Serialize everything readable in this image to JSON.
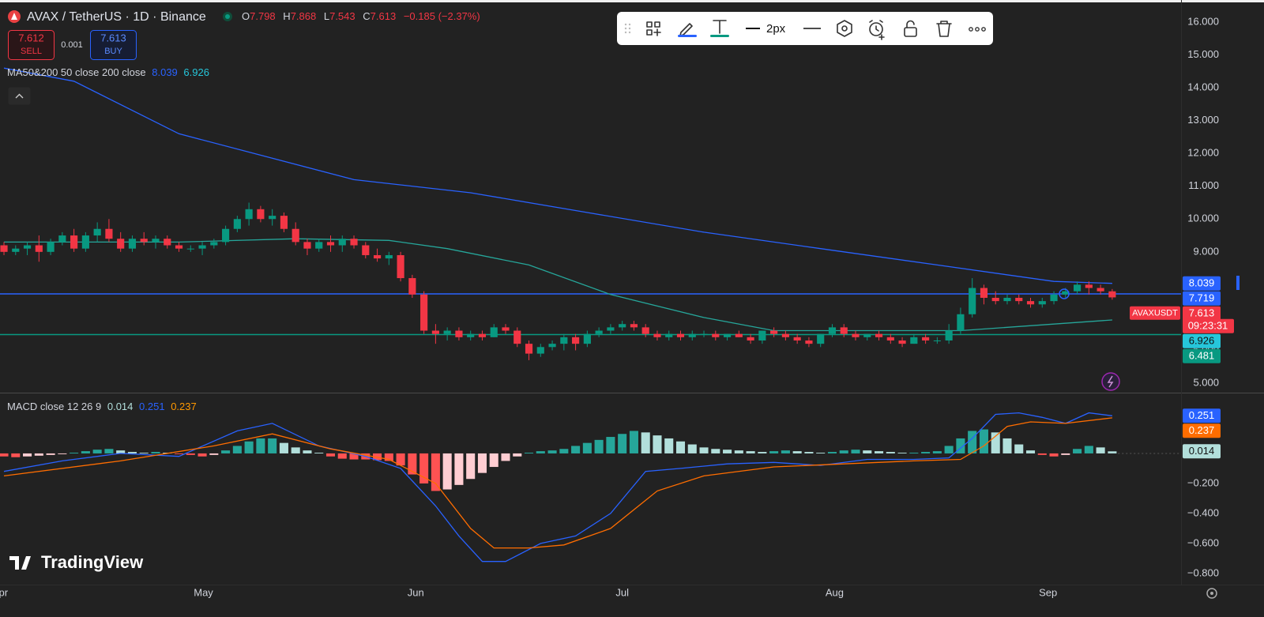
{
  "header": {
    "symbol": "AVAX / TetherUS · 1D · Binance",
    "ohlc": [
      {
        "label": "O",
        "value": "7.798"
      },
      {
        "label": "H",
        "value": "7.868"
      },
      {
        "label": "L",
        "value": "7.543"
      },
      {
        "label": "C",
        "value": "7.613"
      }
    ],
    "change": "−0.185 (−2.37%)",
    "sell": {
      "price": "7.612",
      "label": "SELL"
    },
    "spread": "0.001",
    "buy": {
      "price": "7.613",
      "label": "BUY"
    }
  },
  "toolbar": {
    "width_label": "2px"
  },
  "indicator_legends": [
    {
      "title": "MA50&200 50 close 200 close",
      "values": [
        "8.039",
        "6.926"
      ]
    },
    {
      "title": "MACD close 12 26 9",
      "values": [
        "0.014",
        "0.251",
        "0.237"
      ]
    }
  ],
  "logo": "TradingView",
  "chart_data": [
    {
      "type": "candlestick",
      "up_color": "#089981",
      "down_color": "#f23645",
      "xlim": [
        -0.34,
        100.9
      ],
      "xticks": [
        {
          "value": -0.34,
          "label": "Apr"
        },
        {
          "value": 17.1,
          "label": "May"
        },
        {
          "value": 35.3,
          "label": "Jun"
        },
        {
          "value": 53,
          "label": "Jul"
        },
        {
          "value": 71.2,
          "label": "Aug"
        },
        {
          "value": 89.5,
          "label": "Sep"
        }
      ],
      "ylim": [
        4.711,
        16.674
      ],
      "yticks": [
        {
          "value": 5,
          "label": "5.000"
        },
        {
          "value": 6,
          "label": "6.000"
        },
        {
          "value": 9,
          "label": "9.000"
        },
        {
          "value": 10,
          "label": "10.000"
        },
        {
          "value": 11,
          "label": "11.000"
        },
        {
          "value": 12,
          "label": "12.000"
        },
        {
          "value": 13,
          "label": "13.000"
        },
        {
          "value": 14,
          "label": "14.000"
        },
        {
          "value": 15,
          "label": "15.000"
        },
        {
          "value": 16,
          "label": "16.000"
        }
      ],
      "ohlc": [
        [
          9.2,
          9.3,
          8.9,
          9.0
        ],
        [
          9.0,
          9.2,
          8.9,
          9.1
        ],
        [
          9.1,
          9.3,
          8.9,
          9.2
        ],
        [
          9.2,
          9.5,
          8.7,
          9.0
        ],
        [
          9.0,
          9.4,
          8.9,
          9.3
        ],
        [
          9.3,
          9.6,
          9.2,
          9.5
        ],
        [
          9.5,
          9.7,
          9.0,
          9.1
        ],
        [
          9.1,
          9.6,
          9.0,
          9.5
        ],
        [
          9.5,
          9.9,
          9.3,
          9.7
        ],
        [
          9.7,
          10.0,
          9.3,
          9.4
        ],
        [
          9.4,
          9.6,
          9.0,
          9.1
        ],
        [
          9.1,
          9.5,
          9.0,
          9.4
        ],
        [
          9.4,
          9.6,
          9.2,
          9.3
        ],
        [
          9.3,
          9.5,
          9.1,
          9.4
        ],
        [
          9.4,
          9.5,
          9.1,
          9.2
        ],
        [
          9.2,
          9.3,
          9.0,
          9.1
        ],
        [
          9.1,
          9.2,
          9.0,
          9.1
        ],
        [
          9.1,
          9.3,
          8.9,
          9.2
        ],
        [
          9.2,
          9.4,
          9.1,
          9.3
        ],
        [
          9.3,
          9.8,
          9.2,
          9.7
        ],
        [
          9.7,
          10.1,
          9.6,
          10.0
        ],
        [
          10.0,
          10.5,
          9.8,
          10.3
        ],
        [
          10.3,
          10.4,
          9.9,
          10.0
        ],
        [
          10.0,
          10.3,
          9.8,
          10.1
        ],
        [
          10.1,
          10.2,
          9.6,
          9.7
        ],
        [
          9.7,
          9.9,
          9.2,
          9.3
        ],
        [
          9.3,
          9.4,
          8.9,
          9.1
        ],
        [
          9.1,
          9.4,
          9.0,
          9.3
        ],
        [
          9.3,
          9.5,
          9.0,
          9.2
        ],
        [
          9.2,
          9.5,
          9.0,
          9.4
        ],
        [
          9.4,
          9.5,
          9.1,
          9.2
        ],
        [
          9.2,
          9.3,
          8.8,
          8.9
        ],
        [
          8.9,
          9.1,
          8.7,
          8.8
        ],
        [
          8.8,
          9.0,
          8.6,
          8.9
        ],
        [
          8.9,
          9.0,
          8.1,
          8.2
        ],
        [
          8.2,
          8.3,
          7.6,
          7.7
        ],
        [
          7.7,
          7.8,
          6.5,
          6.6
        ],
        [
          6.6,
          6.8,
          6.2,
          6.5
        ],
        [
          6.5,
          6.7,
          6.3,
          6.6
        ],
        [
          6.6,
          6.7,
          6.3,
          6.4
        ],
        [
          6.4,
          6.6,
          6.3,
          6.5
        ],
        [
          6.5,
          6.6,
          6.3,
          6.4
        ],
        [
          6.4,
          6.8,
          6.4,
          6.7
        ],
        [
          6.7,
          6.8,
          6.5,
          6.6
        ],
        [
          6.6,
          6.7,
          6.1,
          6.2
        ],
        [
          6.2,
          6.3,
          5.7,
          5.9
        ],
        [
          5.9,
          6.2,
          5.8,
          6.1
        ],
        [
          6.1,
          6.3,
          6.0,
          6.2
        ],
        [
          6.2,
          6.5,
          6.0,
          6.4
        ],
        [
          6.4,
          6.5,
          6.0,
          6.2
        ],
        [
          6.2,
          6.6,
          6.1,
          6.5
        ],
        [
          6.5,
          6.7,
          6.4,
          6.6
        ],
        [
          6.6,
          6.8,
          6.5,
          6.7
        ],
        [
          6.7,
          6.9,
          6.6,
          6.8
        ],
        [
          6.8,
          6.9,
          6.6,
          6.7
        ],
        [
          6.7,
          6.8,
          6.4,
          6.5
        ],
        [
          6.5,
          6.6,
          6.3,
          6.4
        ],
        [
          6.4,
          6.6,
          6.3,
          6.5
        ],
        [
          6.5,
          6.6,
          6.3,
          6.4
        ],
        [
          6.4,
          6.6,
          6.3,
          6.5
        ],
        [
          6.5,
          6.6,
          6.4,
          6.5
        ],
        [
          6.5,
          6.6,
          6.3,
          6.4
        ],
        [
          6.4,
          6.5,
          6.3,
          6.5
        ],
        [
          6.5,
          6.6,
          6.4,
          6.4
        ],
        [
          6.4,
          6.5,
          6.2,
          6.3
        ],
        [
          6.3,
          6.6,
          6.2,
          6.6
        ],
        [
          6.6,
          6.7,
          6.4,
          6.5
        ],
        [
          6.5,
          6.6,
          6.3,
          6.4
        ],
        [
          6.4,
          6.5,
          6.2,
          6.3
        ],
        [
          6.3,
          6.4,
          6.1,
          6.2
        ],
        [
          6.2,
          6.5,
          6.1,
          6.5
        ],
        [
          6.5,
          6.8,
          6.4,
          6.7
        ],
        [
          6.7,
          6.8,
          6.4,
          6.5
        ],
        [
          6.5,
          6.6,
          6.3,
          6.4
        ],
        [
          6.4,
          6.5,
          6.3,
          6.5
        ],
        [
          6.5,
          6.6,
          6.3,
          6.4
        ],
        [
          6.4,
          6.5,
          6.2,
          6.3
        ],
        [
          6.3,
          6.4,
          6.1,
          6.2
        ],
        [
          6.2,
          6.5,
          6.2,
          6.4
        ],
        [
          6.4,
          6.5,
          6.2,
          6.3
        ],
        [
          6.3,
          6.4,
          6.2,
          6.3
        ],
        [
          6.3,
          6.8,
          6.2,
          6.6
        ],
        [
          6.6,
          7.3,
          6.5,
          7.1
        ],
        [
          7.1,
          8.2,
          7.0,
          7.9
        ],
        [
          7.9,
          8.0,
          7.4,
          7.6
        ],
        [
          7.6,
          7.8,
          7.4,
          7.5
        ],
        [
          7.5,
          7.7,
          7.4,
          7.6
        ],
        [
          7.6,
          7.7,
          7.4,
          7.5
        ],
        [
          7.5,
          7.6,
          7.3,
          7.4
        ],
        [
          7.4,
          7.6,
          7.3,
          7.5
        ],
        [
          7.5,
          7.8,
          7.4,
          7.7
        ],
        [
          7.7,
          7.9,
          7.6,
          7.8
        ],
        [
          7.8,
          8.1,
          7.7,
          8.0
        ],
        [
          8.0,
          8.1,
          7.7,
          7.9
        ],
        [
          7.9,
          8.0,
          7.7,
          7.798
        ],
        [
          7.798,
          7.868,
          7.543,
          7.613
        ]
      ],
      "series": [
        {
          "color": "#26a69a",
          "x": [
            0,
            15,
            25,
            33,
            38,
            45,
            52,
            60,
            66,
            75,
            82,
            90,
            95
          ],
          "values": [
            9.3,
            9.3,
            9.4,
            9.35,
            9.1,
            8.6,
            7.7,
            7.0,
            6.6,
            6.6,
            6.6,
            6.8,
            6.926
          ]
        },
        {
          "color": "#2962ff",
          "x": [
            0,
            6,
            15,
            30,
            40,
            50,
            60,
            70,
            80,
            90,
            95
          ],
          "values": [
            14.6,
            14.2,
            12.6,
            11.2,
            10.8,
            10.2,
            9.6,
            9.1,
            8.6,
            8.1,
            8.039
          ]
        }
      ],
      "hlines": [
        {
          "value": 7.719,
          "color": "#2962ff"
        },
        {
          "value": 6.481,
          "color": "#089981"
        }
      ],
      "price_labels": [
        {
          "value": 8.039,
          "color": "#2962ff"
        },
        {
          "value": 7.719,
          "color": "#2962ff"
        },
        {
          "value": 7.613,
          "color": "#f23645",
          "countdown": "09:23:31",
          "tag": "AVAXUSDT"
        },
        {
          "value": 6.926,
          "color": "#26c6da"
        },
        {
          "value": 6.481,
          "color": "#089981"
        }
      ]
    },
    {
      "type": "macd",
      "xlim": [
        -0.34,
        100.9
      ],
      "ylim": [
        -0.874,
        0.405
      ],
      "yticks": [
        {
          "value": -0.2,
          "label": "−0.200"
        },
        {
          "value": -0.4,
          "label": "−0.400"
        },
        {
          "value": -0.6,
          "label": "−0.600"
        },
        {
          "value": -0.8,
          "label": "−0.800"
        }
      ],
      "hist_colors": {
        "up_strong": "#26a69a",
        "up_weak": "#b2dfdb",
        "down_strong": "#ff5252",
        "down_weak": "#ffcdd2"
      },
      "histogram": [
        -0.02,
        -0.025,
        -0.02,
        -0.015,
        -0.01,
        -0.005,
        0.005,
        0.015,
        0.025,
        0.03,
        0.02,
        0.01,
        0.005,
        0.01,
        0.005,
        -0.005,
        -0.01,
        -0.02,
        -0.01,
        0.02,
        0.05,
        0.08,
        0.1,
        0.1,
        0.07,
        0.04,
        0.02,
        0.005,
        -0.02,
        -0.035,
        -0.04,
        -0.04,
        -0.045,
        -0.05,
        -0.08,
        -0.14,
        -0.2,
        -0.25,
        -0.24,
        -0.21,
        -0.17,
        -0.13,
        -0.09,
        -0.05,
        -0.02,
        0.005,
        0.015,
        0.02,
        0.03,
        0.05,
        0.07,
        0.09,
        0.11,
        0.13,
        0.15,
        0.14,
        0.12,
        0.1,
        0.08,
        0.06,
        0.04,
        0.03,
        0.025,
        0.02,
        0.015,
        0.01,
        0.015,
        0.02,
        0.015,
        0.01,
        0.005,
        0.01,
        0.02,
        0.025,
        0.02,
        0.015,
        0.01,
        0.005,
        0.005,
        0.01,
        0.015,
        0.05,
        0.1,
        0.15,
        0.16,
        0.14,
        0.1,
        0.06,
        0.02,
        -0.01,
        -0.02,
        -0.01,
        0.03,
        0.05,
        0.04,
        0.014
      ],
      "series": [
        {
          "color": "#2962ff",
          "x": [
            0,
            5,
            10,
            15,
            20,
            23,
            27,
            31,
            34,
            37,
            39,
            41,
            43,
            46,
            49,
            52,
            55,
            58,
            62,
            66,
            70,
            74,
            78,
            81,
            83,
            85,
            87,
            89,
            91,
            93,
            95
          ],
          "values": [
            -0.12,
            -0.05,
            0.0,
            -0.02,
            0.15,
            0.2,
            0.05,
            -0.02,
            -0.1,
            -0.35,
            -0.55,
            -0.72,
            -0.72,
            -0.6,
            -0.55,
            -0.4,
            -0.12,
            -0.1,
            -0.07,
            -0.06,
            -0.08,
            -0.04,
            -0.04,
            -0.03,
            0.1,
            0.26,
            0.27,
            0.24,
            0.2,
            0.27,
            0.251
          ]
        },
        {
          "color": "#ff6d00",
          "x": [
            0,
            10,
            18,
            23,
            28,
            33,
            37,
            40,
            42,
            45,
            48,
            52,
            56,
            60,
            66,
            72,
            78,
            82,
            84,
            86,
            88,
            91,
            95
          ],
          "values": [
            -0.15,
            -0.05,
            0.05,
            0.13,
            0.03,
            -0.04,
            -0.2,
            -0.5,
            -0.63,
            -0.63,
            -0.61,
            -0.5,
            -0.25,
            -0.15,
            -0.09,
            -0.07,
            -0.05,
            -0.04,
            0.05,
            0.18,
            0.21,
            0.2,
            0.237
          ]
        }
      ],
      "price_labels": [
        {
          "value": 0.251,
          "color": "#2962ff"
        },
        {
          "value": 0.237,
          "color": "#ff6d00"
        },
        {
          "value": 0.014,
          "color": "#b2dfdb"
        }
      ]
    }
  ]
}
